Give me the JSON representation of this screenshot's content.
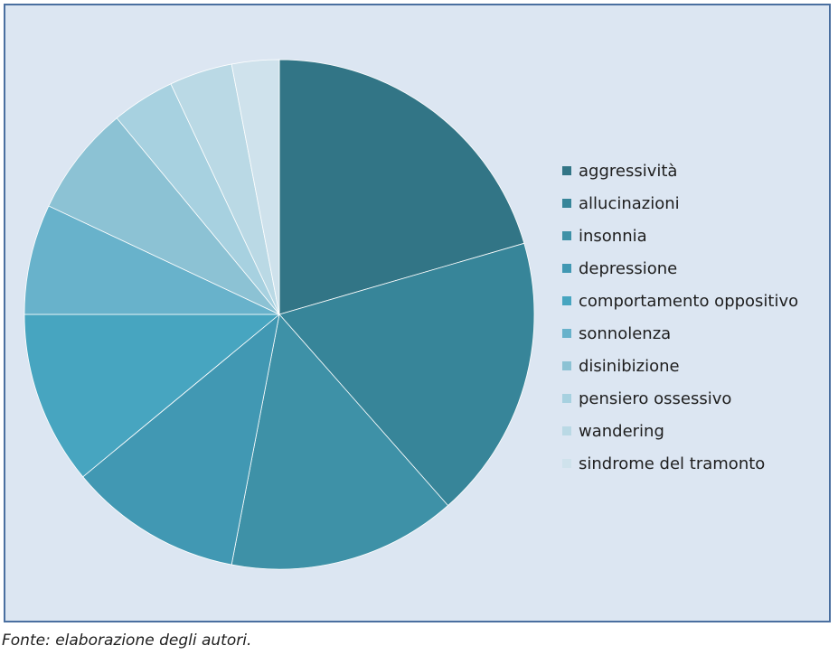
{
  "chart_data": {
    "type": "pie",
    "title": "",
    "start_angle_deg": 0,
    "direction": "clockwise",
    "legend_position": "right",
    "series": [
      {
        "label": "aggressività",
        "value": 20.5,
        "color": "#327586"
      },
      {
        "label": "allucinazioni",
        "value": 18.0,
        "color": "#378599"
      },
      {
        "label": "insonnia",
        "value": 14.5,
        "color": "#3e91a7"
      },
      {
        "label": "depressione",
        "value": 11.0,
        "color": "#4198b3"
      },
      {
        "label": "comportamento oppositivo",
        "value": 11.0,
        "color": "#47a5c0"
      },
      {
        "label": "sonnolenza",
        "value": 7.0,
        "color": "#68b2cb"
      },
      {
        "label": "disinibizione",
        "value": 7.0,
        "color": "#8cc2d4"
      },
      {
        "label": "pensiero ossessivo",
        "value": 4.0,
        "color": "#a7d1e0"
      },
      {
        "label": "wandering",
        "value": 4.0,
        "color": "#bad9e5"
      },
      {
        "label": "sindrome del tramonto",
        "value": 3.0,
        "color": "#cfe2ec"
      }
    ]
  },
  "caption": "Fonte: elaborazione degli autori."
}
